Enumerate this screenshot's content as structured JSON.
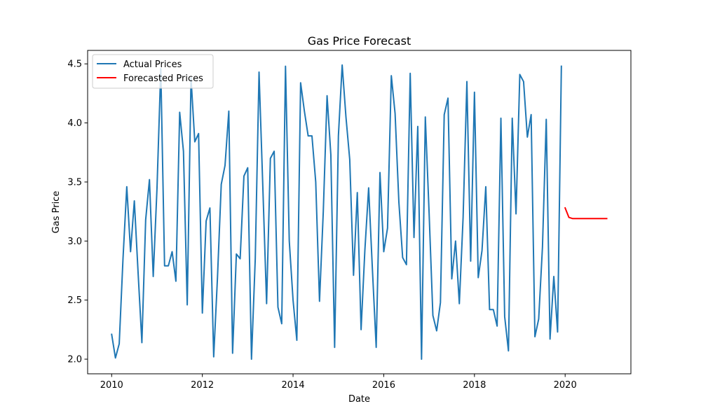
{
  "chart_data": {
    "type": "line",
    "title": "Gas Price Forecast",
    "xlabel": "Date",
    "ylabel": "Gas Price",
    "xlim": [
      2009.47,
      2021.45
    ],
    "ylim": [
      1.876,
      4.614
    ],
    "x_ticks": [
      2010,
      2012,
      2014,
      2016,
      2018,
      2020
    ],
    "x_tick_labels": [
      "2010",
      "2012",
      "2014",
      "2016",
      "2018",
      "2020"
    ],
    "y_ticks": [
      2.0,
      2.5,
      3.0,
      3.5,
      4.0,
      4.5
    ],
    "y_tick_labels": [
      "2.0",
      "2.5",
      "3.0",
      "3.5",
      "4.0",
      "4.5"
    ],
    "grid": false,
    "legend_position": "top-left",
    "series": [
      {
        "name": "Actual Prices",
        "color": "#1f77b4",
        "x": [
          "2010-01",
          "2010-02",
          "2010-03",
          "2010-04",
          "2010-05",
          "2010-06",
          "2010-07",
          "2010-08",
          "2010-09",
          "2010-10",
          "2010-11",
          "2010-12",
          "2011-01",
          "2011-02",
          "2011-03",
          "2011-04",
          "2011-05",
          "2011-06",
          "2011-07",
          "2011-08",
          "2011-09",
          "2011-10",
          "2011-11",
          "2011-12",
          "2012-01",
          "2012-02",
          "2012-03",
          "2012-04",
          "2012-05",
          "2012-06",
          "2012-07",
          "2012-08",
          "2012-09",
          "2012-10",
          "2012-11",
          "2012-12",
          "2013-01",
          "2013-02",
          "2013-03",
          "2013-04",
          "2013-05",
          "2013-06",
          "2013-07",
          "2013-08",
          "2013-09",
          "2013-10",
          "2013-11",
          "2013-12",
          "2014-01",
          "2014-02",
          "2014-03",
          "2014-04",
          "2014-05",
          "2014-06",
          "2014-07",
          "2014-08",
          "2014-09",
          "2014-10",
          "2014-11",
          "2014-12",
          "2015-01",
          "2015-02",
          "2015-03",
          "2015-04",
          "2015-05",
          "2015-06",
          "2015-07",
          "2015-08",
          "2015-09",
          "2015-10",
          "2015-11",
          "2015-12",
          "2016-01",
          "2016-02",
          "2016-03",
          "2016-04",
          "2016-05",
          "2016-06",
          "2016-07",
          "2016-08",
          "2016-09",
          "2016-10",
          "2016-11",
          "2016-12",
          "2017-01",
          "2017-02",
          "2017-03",
          "2017-04",
          "2017-05",
          "2017-06",
          "2017-07",
          "2017-08",
          "2017-09",
          "2017-10",
          "2017-11",
          "2017-12",
          "2018-01",
          "2018-02",
          "2018-03",
          "2018-04",
          "2018-05",
          "2018-06",
          "2018-07",
          "2018-08",
          "2018-09",
          "2018-10",
          "2018-11",
          "2018-12",
          "2019-01",
          "2019-02",
          "2019-03",
          "2019-04",
          "2019-05",
          "2019-06",
          "2019-07",
          "2019-08",
          "2019-09",
          "2019-10",
          "2019-11",
          "2019-12"
        ],
        "y": [
          2.21,
          2.01,
          2.13,
          2.85,
          3.46,
          2.91,
          3.34,
          2.73,
          2.14,
          3.18,
          3.52,
          2.7,
          3.45,
          4.46,
          2.79,
          2.79,
          2.91,
          2.66,
          4.09,
          3.76,
          2.46,
          4.38,
          3.84,
          3.91,
          2.39,
          3.17,
          3.28,
          2.02,
          2.69,
          3.48,
          3.64,
          4.1,
          2.05,
          2.89,
          2.85,
          3.55,
          3.62,
          2.0,
          2.85,
          4.43,
          3.46,
          2.47,
          3.7,
          3.76,
          2.44,
          2.3,
          4.48,
          3.0,
          2.5,
          2.16,
          4.34,
          4.1,
          3.89,
          3.89,
          3.5,
          2.49,
          3.25,
          4.23,
          3.73,
          2.1,
          3.89,
          4.49,
          4.05,
          3.69,
          2.71,
          3.41,
          2.25,
          2.92,
          3.45,
          2.76,
          2.1,
          3.58,
          2.91,
          3.11,
          4.4,
          4.08,
          3.33,
          2.86,
          2.8,
          4.42,
          3.03,
          3.97,
          2.0,
          4.05,
          3.24,
          2.37,
          2.24,
          2.48,
          4.07,
          4.21,
          2.68,
          3.0,
          2.47,
          3.2,
          4.35,
          2.83,
          4.26,
          2.69,
          2.92,
          3.46,
          2.42,
          2.42,
          2.28,
          4.04,
          2.36,
          2.07,
          4.04,
          3.23,
          4.41,
          4.35,
          3.88,
          4.07,
          2.19,
          2.34,
          2.95,
          4.03,
          2.17,
          2.7,
          2.23,
          4.48
        ]
      },
      {
        "name": "Forecasted Prices",
        "color": "#ff0000",
        "x": [
          "2020-01",
          "2020-02",
          "2020-03",
          "2020-04",
          "2020-05",
          "2020-06",
          "2020-07",
          "2020-08",
          "2020-09",
          "2020-10",
          "2020-11",
          "2020-12"
        ],
        "y": [
          3.28,
          3.2,
          3.19,
          3.19,
          3.19,
          3.19,
          3.19,
          3.19,
          3.19,
          3.19,
          3.19,
          3.19
        ]
      }
    ]
  }
}
